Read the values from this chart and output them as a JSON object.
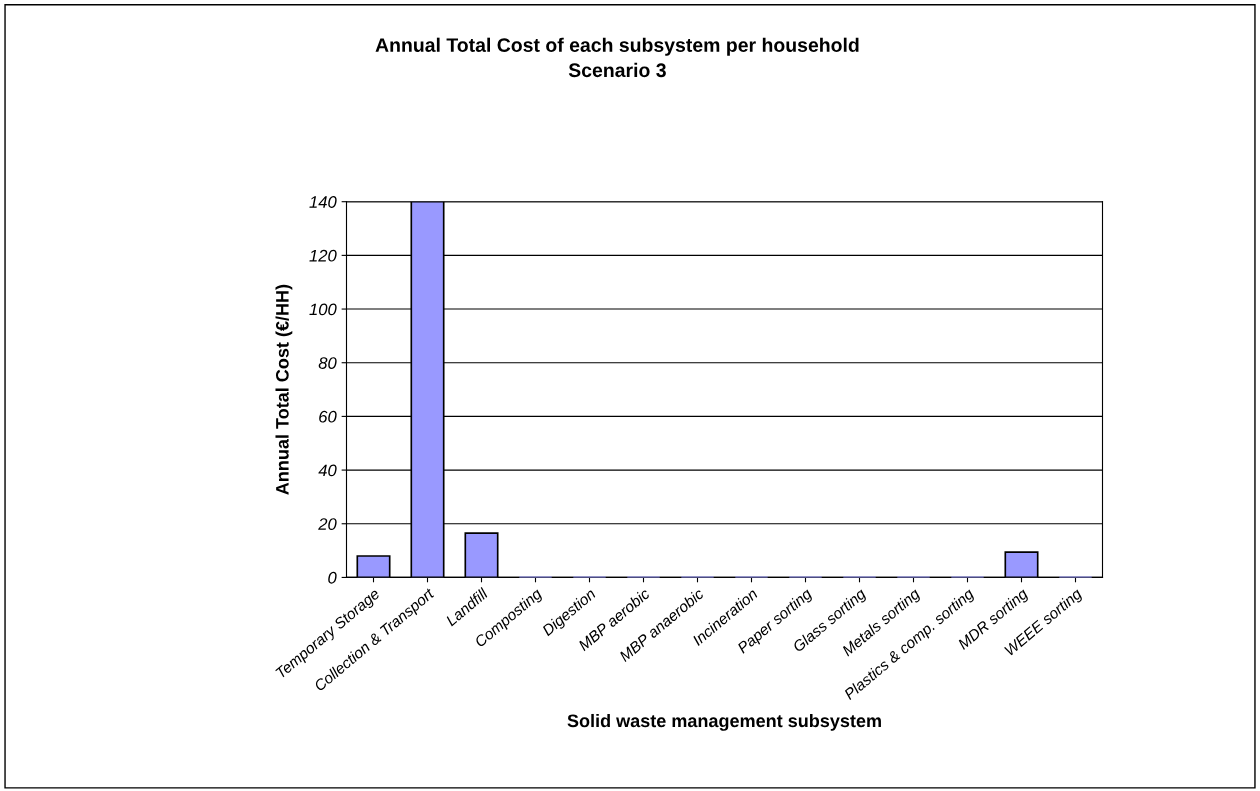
{
  "chart_data": {
    "type": "bar",
    "title": "Annual Total Cost of each subsystem per household\nScenario 3",
    "xlabel": "Solid waste management subsystem",
    "ylabel": "Annual Total Cost (€/HH)",
    "categories": [
      "Temporary Storage",
      "Collection & Transport",
      "Landfill",
      "Composting",
      "Digestion",
      "MBP aerobic",
      "MBP anaerobic",
      "Incineration",
      "Paper sorting",
      "Glass sorting",
      "Metals sorting",
      "Plastics & comp. sorting",
      "MDR sorting",
      "WEEE sorting"
    ],
    "values": [
      8,
      140,
      16.5,
      0,
      0,
      0,
      0,
      0,
      0,
      0,
      0,
      0,
      9.4,
      0
    ],
    "color": "#9999ff",
    "ylim": [
      0,
      140
    ],
    "yticks": [
      0,
      20,
      40,
      60,
      80,
      100,
      120,
      140
    ],
    "grid": "y"
  }
}
